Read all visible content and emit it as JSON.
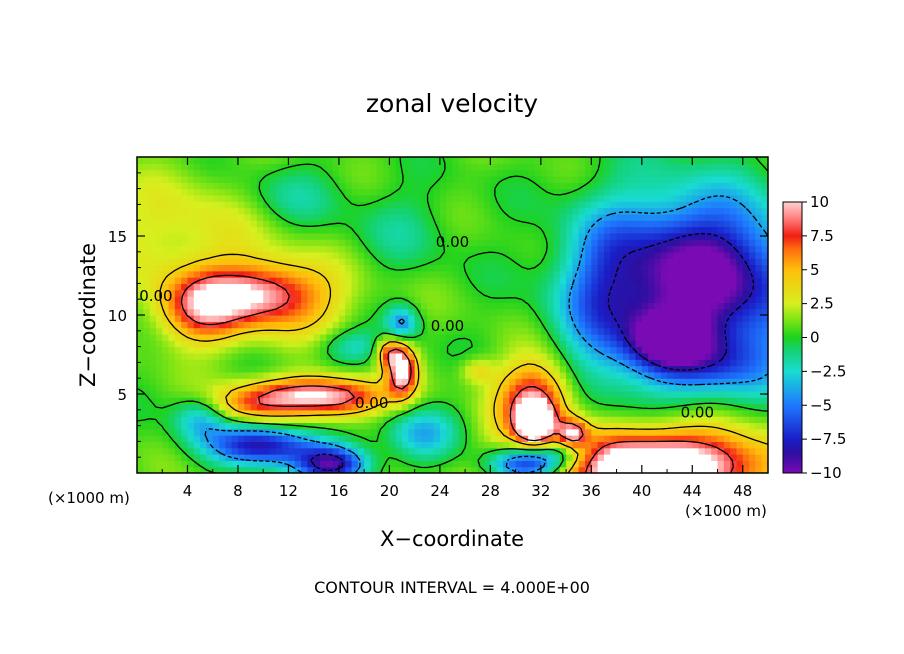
{
  "chart_data": {
    "type": "heatmap",
    "title": "zonal velocity",
    "xlabel": "X−coordinate",
    "ylabel": "Z−coordinate",
    "x_units_left": "(×1000 m)",
    "x_units_right": "(×1000 m)",
    "footer": "CONTOUR INTERVAL = 4.000E+00",
    "xlim": [
      0,
      50
    ],
    "ylim": [
      0,
      20
    ],
    "x_ticks": [
      4,
      8,
      12,
      16,
      20,
      24,
      28,
      32,
      36,
      40,
      44,
      48
    ],
    "y_ticks": [
      5,
      10,
      15
    ],
    "colorbar": {
      "min": -10,
      "max": 10,
      "ticks": [
        "10",
        "7.5",
        "5",
        "2.5",
        "0",
        "−2.5",
        "−5",
        "−7.5",
        "−10"
      ],
      "stops": [
        {
          "value": -10,
          "color": "#7a0ab4"
        },
        {
          "value": -8.5,
          "color": "#2c0fa0"
        },
        {
          "value": -7.5,
          "color": "#1a1ec8"
        },
        {
          "value": -5,
          "color": "#1e78ff"
        },
        {
          "value": -2.5,
          "color": "#19dcd2"
        },
        {
          "value": -1,
          "color": "#14d278"
        },
        {
          "value": 0,
          "color": "#1ed21e"
        },
        {
          "value": 1.5,
          "color": "#8ce614"
        },
        {
          "value": 2.5,
          "color": "#d7ef1e"
        },
        {
          "value": 5,
          "color": "#ffbe0a"
        },
        {
          "value": 6.5,
          "color": "#ff6e0f"
        },
        {
          "value": 7.5,
          "color": "#f01e14"
        },
        {
          "value": 8.7,
          "color": "#ff7878"
        },
        {
          "value": 10,
          "color": "#ffd2d2"
        }
      ],
      "over_color": "#ffffff"
    },
    "contour_labels": [
      {
        "text": "0.00",
        "x": 1.5,
        "y": 10.9
      },
      {
        "text": "0.00",
        "x": 25.0,
        "y": 14.3
      },
      {
        "text": "0.00",
        "x": 24.6,
        "y": 9.0
      },
      {
        "text": "0.00",
        "x": 18.6,
        "y": 4.1
      },
      {
        "text": "0.00",
        "x": 44.4,
        "y": 3.5
      }
    ],
    "field_features": [
      {
        "x": 5.0,
        "z": 10.5,
        "amp": 7.5,
        "sx": 2.4,
        "sz": 1.6
      },
      {
        "x": 9.5,
        "z": 11.4,
        "amp": 5.5,
        "sx": 3.0,
        "sz": 1.3
      },
      {
        "x": 12.0,
        "z": 11.0,
        "amp": 4.0,
        "sx": 3.5,
        "sz": 1.8
      },
      {
        "x": 4.0,
        "z": 15.5,
        "amp": 2.5,
        "sx": 5.0,
        "sz": 2.5
      },
      {
        "x": 13.5,
        "z": 5.0,
        "amp": 7.5,
        "sx": 3.8,
        "sz": 0.8
      },
      {
        "x": 16.5,
        "z": 4.6,
        "amp": 4.0,
        "sx": 2.5,
        "sz": 0.9
      },
      {
        "x": 9.0,
        "z": 4.2,
        "amp": 4.0,
        "sx": 2.5,
        "sz": 0.8
      },
      {
        "x": 21.0,
        "z": 6.5,
        "amp": 9.5,
        "sx": 0.8,
        "sz": 1.1
      },
      {
        "x": 20.0,
        "z": 7.7,
        "amp": 6.0,
        "sx": 0.8,
        "sz": 0.7
      },
      {
        "x": 31.5,
        "z": 4.5,
        "amp": 9.0,
        "sx": 2.0,
        "sz": 1.8
      },
      {
        "x": 31.5,
        "z": 3.2,
        "amp": 12.5,
        "sx": 0.9,
        "sz": 0.8
      },
      {
        "x": 34.5,
        "z": 2.5,
        "amp": 7.0,
        "sx": 0.8,
        "sz": 0.6
      },
      {
        "x": 41.0,
        "z": 0.5,
        "amp": 13.0,
        "sx": 6.5,
        "sz": 1.6
      },
      {
        "x": 27.0,
        "z": 6.5,
        "amp": 3.0,
        "sx": 1.0,
        "sz": 0.6
      },
      {
        "x": 45.0,
        "z": 12.0,
        "amp": -9.0,
        "sx": 6.0,
        "sz": 3.5
      },
      {
        "x": 44.0,
        "z": 13.5,
        "amp": -3.0,
        "sx": 4.0,
        "sz": 3.5
      },
      {
        "x": 42.0,
        "z": 8.5,
        "amp": -7.0,
        "sx": 2.0,
        "sz": 1.2
      },
      {
        "x": 45.5,
        "z": 7.0,
        "amp": -4.5,
        "sx": 4.0,
        "sz": 1.5
      },
      {
        "x": 37.0,
        "z": 11.0,
        "amp": -4.0,
        "sx": 2.5,
        "sz": 4.0
      },
      {
        "x": 10.0,
        "z": 1.8,
        "amp": -8.5,
        "sx": 3.0,
        "sz": 0.9
      },
      {
        "x": 15.5,
        "z": 0.6,
        "amp": -9.0,
        "sx": 2.0,
        "sz": 0.8
      },
      {
        "x": 31.0,
        "z": 0.6,
        "amp": -10.0,
        "sx": 2.2,
        "sz": 0.8
      },
      {
        "x": 34.0,
        "z": 1.4,
        "amp": -5.0,
        "sx": 1.8,
        "sz": 0.8
      },
      {
        "x": 5.0,
        "z": 3.5,
        "amp": -4.0,
        "sx": 1.5,
        "sz": 1.0
      },
      {
        "x": 21.0,
        "z": 9.5,
        "amp": -5.0,
        "sx": 0.9,
        "sz": 0.8
      },
      {
        "x": 17.0,
        "z": 8.0,
        "amp": -3.0,
        "sx": 2.0,
        "sz": 0.8
      },
      {
        "x": 22.5,
        "z": 2.5,
        "amp": -4.0,
        "sx": 2.0,
        "sz": 1.2
      },
      {
        "x": 12.0,
        "z": 17.5,
        "amp": -2.0,
        "sx": 3.0,
        "sz": 1.5
      },
      {
        "x": 21.0,
        "z": 15.5,
        "amp": -1.5,
        "sx": 3.0,
        "sz": 2.0
      }
    ]
  }
}
